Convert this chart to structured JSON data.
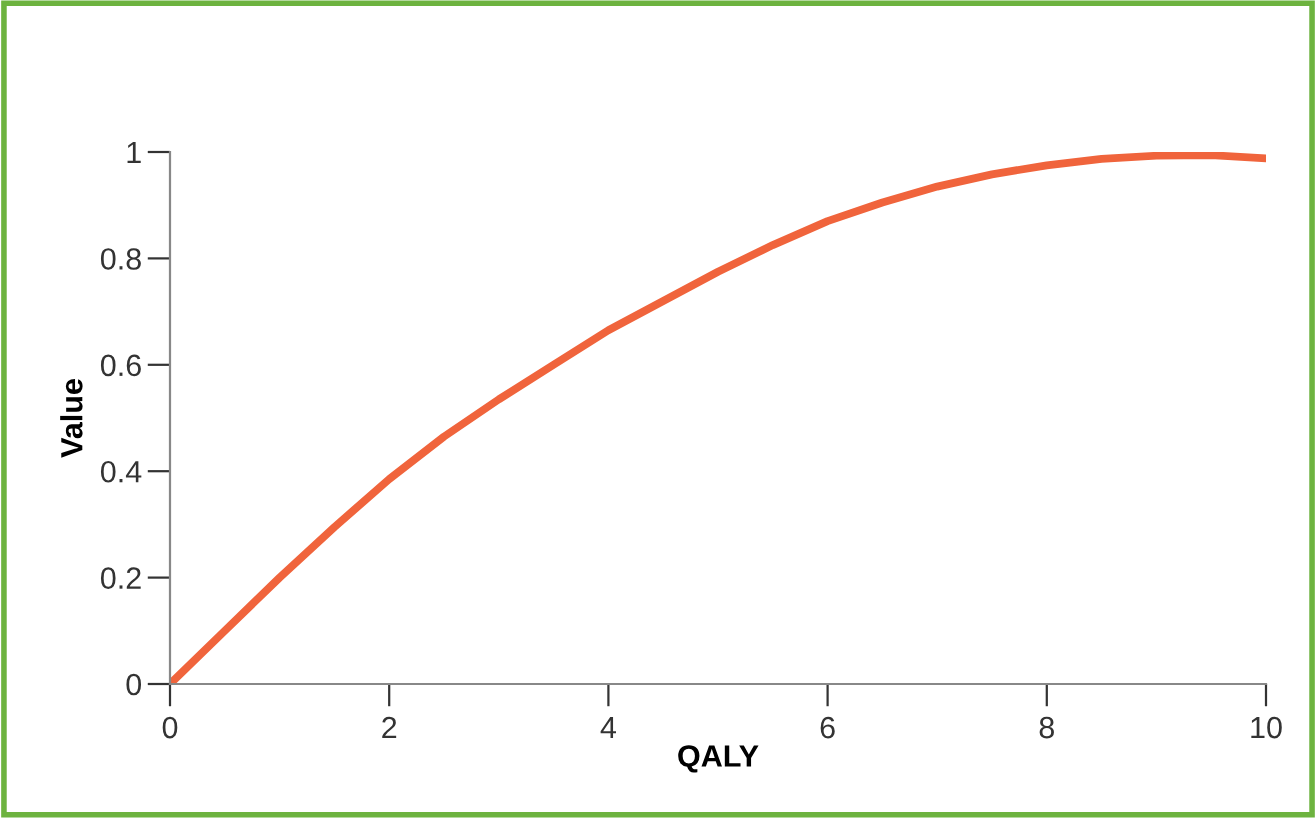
{
  "chart_data": {
    "type": "line",
    "xlabel": "QALY",
    "ylabel": "Value",
    "x": [
      0,
      0.5,
      1,
      1.5,
      2,
      2.5,
      3,
      3.5,
      4,
      4.5,
      5,
      5.5,
      6,
      6.5,
      7,
      7.5,
      8,
      8.5,
      9,
      9.5,
      10
    ],
    "series": [
      {
        "color": "#f0643c",
        "values": [
          0,
          0.1,
          0.2,
          0.295,
          0.385,
          0.465,
          0.535,
          0.6,
          0.665,
          0.72,
          0.775,
          0.825,
          0.87,
          0.905,
          0.935,
          0.958,
          0.975,
          0.987,
          0.993,
          0.994,
          0.988
        ]
      }
    ],
    "xlim": [
      0,
      10
    ],
    "ylim": [
      0,
      1
    ],
    "xticks": [
      0,
      2,
      4,
      6,
      8,
      10
    ],
    "yticks": [
      0,
      0.2,
      0.4,
      0.6,
      0.8,
      1
    ],
    "grid": false,
    "legend": false,
    "marker": "none",
    "line_style": "solid"
  }
}
